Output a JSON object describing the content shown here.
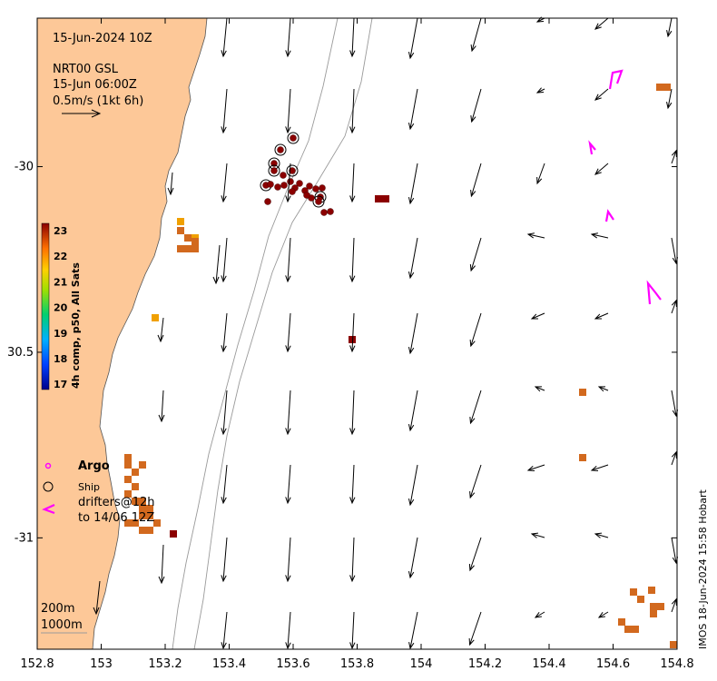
{
  "map": {
    "timestamp": "15-Jun-2024 10Z",
    "product_line1": "NRT00 GSL",
    "product_line2": "15-Jun 06:00Z",
    "scale_label": "0.5m/s (1kt 6h)",
    "credit": "IMOS 18-Jun-2024 15:58 Hobart",
    "lon_range": [
      152.8,
      154.8
    ],
    "lat_range": [
      -31.3,
      -29.6
    ],
    "x_ticks": [
      "152.8",
      "153",
      "153.2",
      "153.4",
      "153.6",
      "153.8",
      "154",
      "154.2",
      "154.4",
      "154.6",
      "154.8"
    ],
    "y_ticks": [
      {
        "label": "-30",
        "lat": -30.0
      },
      {
        "label": "30.5",
        "lat": -30.5
      },
      {
        "label": "-31",
        "lat": -31.0
      }
    ]
  },
  "colorbar": {
    "title": "4h comp, p50, All Sats",
    "ticks": [
      "23",
      "22",
      "21",
      "20",
      "19",
      "18",
      "17"
    ],
    "range": [
      17,
      23
    ]
  },
  "legend": {
    "argo_label": "Argo",
    "ship_label": "Ship",
    "drifters_line1": "drifters@12h",
    "drifters_line2": "to 14/06 12Z"
  },
  "depth_labels": {
    "contour_a": "200m",
    "contour_b": "1000m"
  },
  "colors": {
    "land": "#fdc898",
    "arrow": "#000000",
    "argo": "#ff00ff",
    "sst_warm": "#8b0000",
    "sst_orange": "#d2691e",
    "sst_yellow": "#f0a000"
  }
}
